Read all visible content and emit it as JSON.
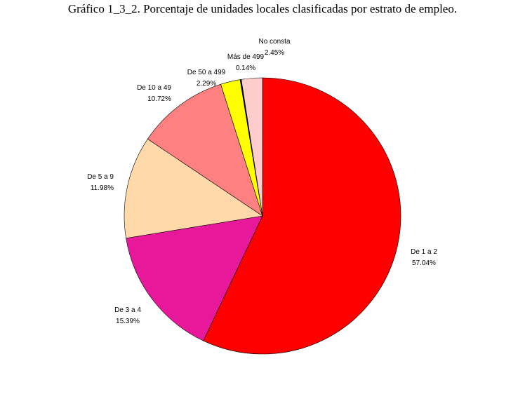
{
  "chart_data": {
    "type": "pie",
    "title": "Gráfico 1_3_2. Porcentaje de unidades locales clasificadas por estrato de empleo.",
    "slices": [
      {
        "label": "De 1 a 2",
        "percent_text": "57.04%",
        "value": 57.04,
        "color": "#ff0000"
      },
      {
        "label": "De 3 a 4",
        "percent_text": "15.39%",
        "value": 15.39,
        "color": "#e8189a"
      },
      {
        "label": "De 5 a 9",
        "percent_text": "11.98%",
        "value": 11.98,
        "color": "#ffd9aa"
      },
      {
        "label": "De 10 a 49",
        "percent_text": "10.72%",
        "value": 10.72,
        "color": "#ff8080"
      },
      {
        "label": "De 50 a 499",
        "percent_text": "2.29%",
        "value": 2.29,
        "color": "#ffff00"
      },
      {
        "label": "Más de 499",
        "percent_text": "0.14%",
        "value": 0.14,
        "color": "#000000"
      },
      {
        "label": "No consta",
        "percent_text": "2.45%",
        "value": 2.45,
        "color": "#ffcccc"
      }
    ]
  }
}
